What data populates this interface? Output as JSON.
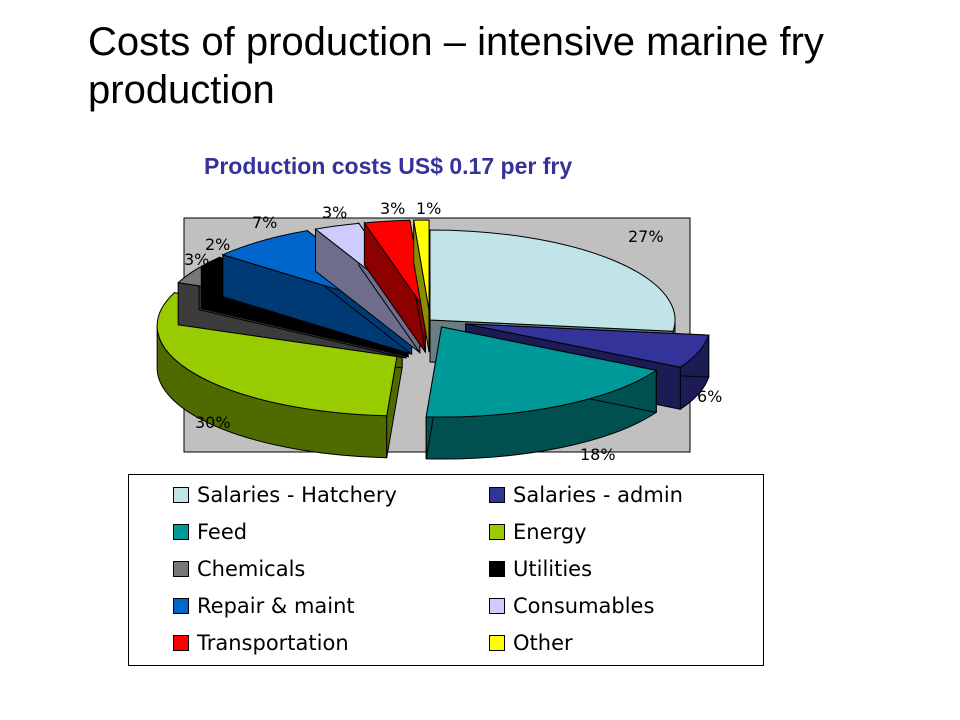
{
  "title": "Costs of production – intensive marine fry production",
  "chart_data": {
    "type": "pie",
    "title": "Production costs US$ 0.17 per fry",
    "slices": [
      {
        "label": "Salaries - Hatchery",
        "value": 27,
        "value_label": "27%",
        "color": "#C0E4E8",
        "dark": "#687E82"
      },
      {
        "label": "Salaries - admin",
        "value": 6,
        "value_label": "6%",
        "color": "#333399",
        "dark": "#1B1B55"
      },
      {
        "label": "Feed",
        "value": 18,
        "value_label": "18%",
        "color": "#009999",
        "dark": "#005050"
      },
      {
        "label": "Energy",
        "value": 30,
        "value_label": "30%",
        "color": "#99CC00",
        "dark": "#4F6B00"
      },
      {
        "label": "Chemicals",
        "value": 3,
        "value_label": "3%",
        "color": "#777777",
        "dark": "#3C3C3C"
      },
      {
        "label": "Utilities",
        "value": 2,
        "value_label": "2%",
        "color": "#000000",
        "dark": "#000000"
      },
      {
        "label": "Repair & maint",
        "value": 7,
        "value_label": "7%",
        "color": "#0066CC",
        "dark": "#003A75"
      },
      {
        "label": "Consumables",
        "value": 3,
        "value_label": "3%",
        "color": "#CCCCFF",
        "dark": "#6E6E8C"
      },
      {
        "label": "Transportation",
        "value": 3,
        "value_label": "3%",
        "color": "#FF0000",
        "dark": "#8C0000"
      },
      {
        "label": "Other",
        "value": 1,
        "value_label": "1%",
        "color": "#FFFF00",
        "dark": "#8C8C00"
      }
    ],
    "plot_background": "#C0C0C0",
    "legend_placement": "bottom",
    "style": "3d-exploded-pie"
  }
}
